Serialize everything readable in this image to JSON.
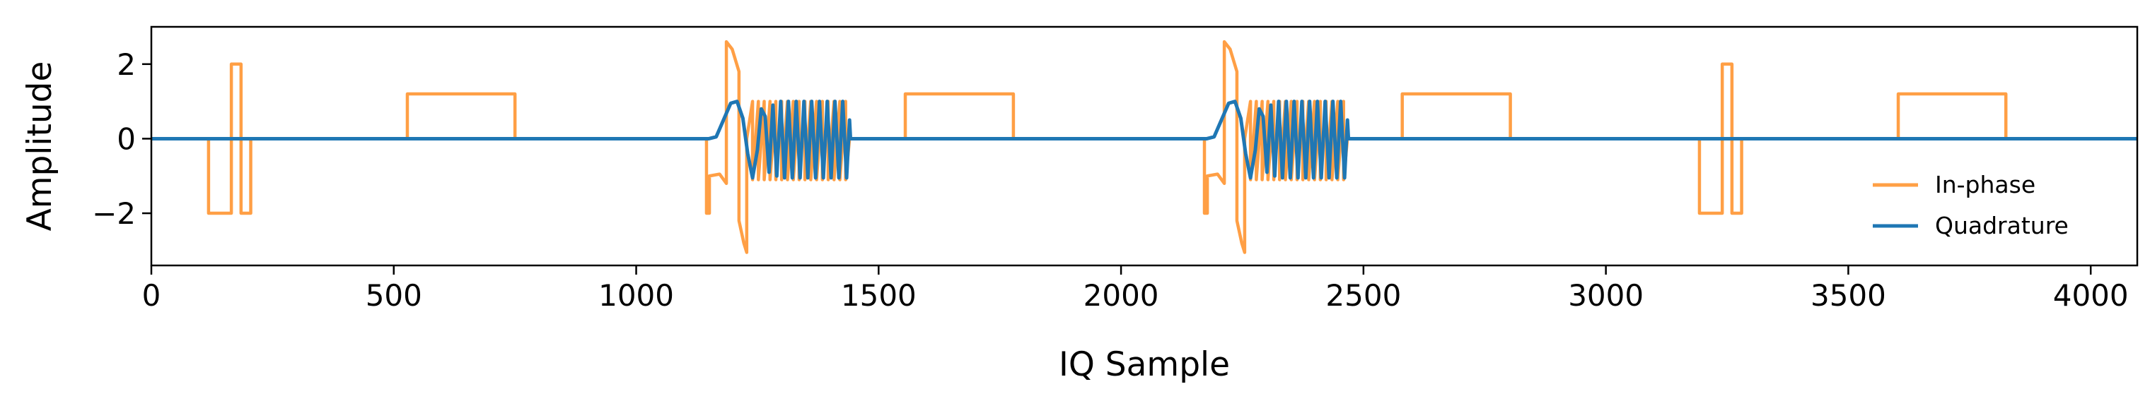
{
  "chart_data": {
    "type": "line",
    "xlabel": "IQ Sample",
    "ylabel": "Amplitude",
    "xlim": [
      0,
      4096
    ],
    "ylim": [
      -3.4,
      3.0
    ],
    "xticks": [
      0,
      500,
      1000,
      1500,
      2000,
      2500,
      3000,
      3500,
      4000
    ],
    "yticks": [
      -2,
      0,
      2
    ],
    "ytick_labels": [
      "−2",
      "0",
      "2"
    ],
    "grid": false,
    "legend_position": "lower-right",
    "series": [
      {
        "name": "In-phase",
        "color": "#ff9f45",
        "points": [
          [
            0,
            0
          ],
          [
            118,
            0
          ],
          [
            118,
            -2
          ],
          [
            165,
            -2
          ],
          [
            165,
            2
          ],
          [
            185,
            2
          ],
          [
            185,
            -2
          ],
          [
            205,
            -2
          ],
          [
            205,
            0
          ],
          [
            528,
            0
          ],
          [
            528,
            1.2
          ],
          [
            750,
            1.2
          ],
          [
            750,
            0
          ],
          [
            1145,
            0
          ],
          [
            1145,
            -2
          ],
          [
            1151,
            -2
          ],
          [
            1151,
            -1
          ],
          [
            1172,
            -0.95
          ],
          [
            1186,
            -1.2
          ],
          [
            1186,
            2.6
          ],
          [
            1198,
            2.4
          ],
          [
            1212,
            1.8
          ],
          [
            1212,
            -2.2
          ],
          [
            1222,
            -2.8
          ],
          [
            1228,
            -3.05
          ],
          [
            1228,
            0.0
          ],
          [
            1240,
            1.0
          ],
          [
            1240,
            -1.1
          ],
          [
            1252,
            1.0
          ],
          [
            1252,
            -1.1
          ],
          [
            1264,
            1.0
          ],
          [
            1264,
            -1.1
          ],
          [
            1276,
            1.0
          ],
          [
            1276,
            -1.1
          ],
          [
            1288,
            1.0
          ],
          [
            1288,
            -1.1
          ],
          [
            1300,
            1.0
          ],
          [
            1300,
            -1.1
          ],
          [
            1312,
            1.0
          ],
          [
            1312,
            -1.1
          ],
          [
            1324,
            1.0
          ],
          [
            1324,
            -1.1
          ],
          [
            1336,
            1.0
          ],
          [
            1336,
            -1.1
          ],
          [
            1348,
            1.0
          ],
          [
            1348,
            -1.1
          ],
          [
            1360,
            1.0
          ],
          [
            1360,
            -1.1
          ],
          [
            1372,
            1.0
          ],
          [
            1372,
            -1.1
          ],
          [
            1384,
            1.0
          ],
          [
            1384,
            -1.1
          ],
          [
            1396,
            1.0
          ],
          [
            1396,
            -1.1
          ],
          [
            1408,
            1.0
          ],
          [
            1408,
            -1.1
          ],
          [
            1420,
            1.0
          ],
          [
            1420,
            -1.1
          ],
          [
            1432,
            1.0
          ],
          [
            1432,
            -1.1
          ],
          [
            1440,
            0
          ],
          [
            1555,
            0
          ],
          [
            1555,
            1.2
          ],
          [
            1778,
            1.2
          ],
          [
            1778,
            0
          ],
          [
            2172,
            0
          ],
          [
            2172,
            -2
          ],
          [
            2178,
            -2
          ],
          [
            2178,
            -1
          ],
          [
            2199,
            -0.95
          ],
          [
            2213,
            -1.2
          ],
          [
            2213,
            2.6
          ],
          [
            2225,
            2.4
          ],
          [
            2239,
            1.8
          ],
          [
            2239,
            -2.2
          ],
          [
            2249,
            -2.8
          ],
          [
            2255,
            -3.05
          ],
          [
            2255,
            0.0
          ],
          [
            2267,
            1.0
          ],
          [
            2267,
            -1.1
          ],
          [
            2279,
            1.0
          ],
          [
            2279,
            -1.1
          ],
          [
            2291,
            1.0
          ],
          [
            2291,
            -1.1
          ],
          [
            2303,
            1.0
          ],
          [
            2303,
            -1.1
          ],
          [
            2315,
            1.0
          ],
          [
            2315,
            -1.1
          ],
          [
            2327,
            1.0
          ],
          [
            2327,
            -1.1
          ],
          [
            2339,
            1.0
          ],
          [
            2339,
            -1.1
          ],
          [
            2351,
            1.0
          ],
          [
            2351,
            -1.1
          ],
          [
            2363,
            1.0
          ],
          [
            2363,
            -1.1
          ],
          [
            2375,
            1.0
          ],
          [
            2375,
            -1.1
          ],
          [
            2387,
            1.0
          ],
          [
            2387,
            -1.1
          ],
          [
            2399,
            1.0
          ],
          [
            2399,
            -1.1
          ],
          [
            2411,
            1.0
          ],
          [
            2411,
            -1.1
          ],
          [
            2423,
            1.0
          ],
          [
            2423,
            -1.1
          ],
          [
            2435,
            1.0
          ],
          [
            2435,
            -1.1
          ],
          [
            2447,
            1.0
          ],
          [
            2447,
            -1.1
          ],
          [
            2459,
            1.0
          ],
          [
            2459,
            -1.1
          ],
          [
            2467,
            0
          ],
          [
            2580,
            0
          ],
          [
            2580,
            1.2
          ],
          [
            2803,
            1.2
          ],
          [
            2803,
            0
          ],
          [
            3193,
            0
          ],
          [
            3193,
            -2
          ],
          [
            3240,
            -2
          ],
          [
            3240,
            2
          ],
          [
            3260,
            2
          ],
          [
            3260,
            -2
          ],
          [
            3280,
            -2
          ],
          [
            3280,
            0
          ],
          [
            3603,
            0
          ],
          [
            3603,
            1.2
          ],
          [
            3825,
            1.2
          ],
          [
            3825,
            0
          ],
          [
            4096,
            0
          ]
        ]
      },
      {
        "name": "Quadrature",
        "color": "#1f77b4",
        "points": [
          [
            0,
            0
          ],
          [
            1150,
            0
          ],
          [
            1165,
            0.05
          ],
          [
            1180,
            0.5
          ],
          [
            1195,
            0.95
          ],
          [
            1208,
            1.0
          ],
          [
            1220,
            0.55
          ],
          [
            1230,
            -0.4
          ],
          [
            1240,
            -1.05
          ],
          [
            1250,
            -0.3
          ],
          [
            1258,
            0.8
          ],
          [
            1266,
            0.6
          ],
          [
            1274,
            -0.9
          ],
          [
            1282,
            0.9
          ],
          [
            1290,
            -1.0
          ],
          [
            1298,
            1.0
          ],
          [
            1306,
            -1.05
          ],
          [
            1314,
            1.0
          ],
          [
            1322,
            -1.05
          ],
          [
            1330,
            1.0
          ],
          [
            1338,
            -1.05
          ],
          [
            1346,
            1.0
          ],
          [
            1354,
            -1.05
          ],
          [
            1362,
            1.0
          ],
          [
            1370,
            -1.05
          ],
          [
            1378,
            1.0
          ],
          [
            1386,
            -1.05
          ],
          [
            1394,
            1.0
          ],
          [
            1402,
            -1.05
          ],
          [
            1410,
            1.0
          ],
          [
            1418,
            -1.05
          ],
          [
            1426,
            1.0
          ],
          [
            1434,
            -1.05
          ],
          [
            1440,
            0.5
          ],
          [
            1442,
            0
          ],
          [
            2177,
            0
          ],
          [
            2192,
            0.05
          ],
          [
            2207,
            0.5
          ],
          [
            2222,
            0.95
          ],
          [
            2235,
            1.0
          ],
          [
            2247,
            0.55
          ],
          [
            2257,
            -0.4
          ],
          [
            2267,
            -1.05
          ],
          [
            2277,
            -0.3
          ],
          [
            2285,
            0.8
          ],
          [
            2293,
            0.6
          ],
          [
            2301,
            -0.9
          ],
          [
            2309,
            0.9
          ],
          [
            2317,
            -1.0
          ],
          [
            2325,
            1.0
          ],
          [
            2333,
            -1.05
          ],
          [
            2341,
            1.0
          ],
          [
            2349,
            -1.05
          ],
          [
            2357,
            1.0
          ],
          [
            2365,
            -1.05
          ],
          [
            2373,
            1.0
          ],
          [
            2381,
            -1.05
          ],
          [
            2389,
            1.0
          ],
          [
            2397,
            -1.05
          ],
          [
            2405,
            1.0
          ],
          [
            2413,
            -1.05
          ],
          [
            2421,
            1.0
          ],
          [
            2429,
            -1.05
          ],
          [
            2437,
            1.0
          ],
          [
            2445,
            -1.05
          ],
          [
            2453,
            1.0
          ],
          [
            2461,
            -1.05
          ],
          [
            2467,
            0.5
          ],
          [
            2469,
            0
          ],
          [
            4096,
            0
          ]
        ]
      }
    ]
  }
}
